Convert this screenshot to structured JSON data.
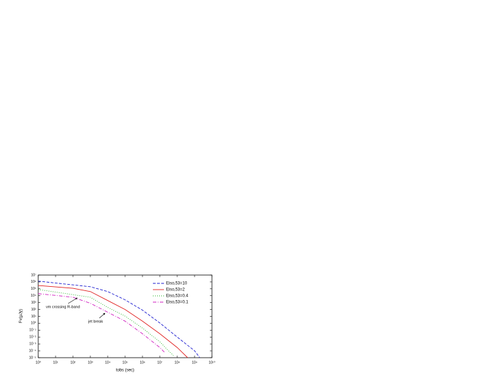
{
  "chart_data": {
    "type": "line",
    "x_label": "tobs (sec)",
    "y_label": "Fν(μJy)",
    "xscale": "log",
    "yscale": "log",
    "xlim": [
      1,
      10000000000
    ],
    "ylim": [
      1e-05,
      10000000
    ],
    "xticks": [
      {
        "value": 1,
        "label": "10⁰"
      },
      {
        "value": 10,
        "label": "10¹"
      },
      {
        "value": 100,
        "label": "10²"
      },
      {
        "value": 1000,
        "label": "10³"
      },
      {
        "value": 10000,
        "label": "10⁴"
      },
      {
        "value": 100000,
        "label": "10⁵"
      },
      {
        "value": 1000000,
        "label": "10⁶"
      },
      {
        "value": 10000000,
        "label": "10⁷"
      },
      {
        "value": 100000000,
        "label": "10⁸"
      },
      {
        "value": 1000000000,
        "label": "10⁹"
      },
      {
        "value": 10000000000,
        "label": "10¹⁰"
      }
    ],
    "yticks": [
      {
        "value": 1e-05,
        "label": "10⁻⁵"
      },
      {
        "value": 0.0001,
        "label": "10⁻⁴"
      },
      {
        "value": 0.001,
        "label": "10⁻³"
      },
      {
        "value": 0.01,
        "label": "10⁻²"
      },
      {
        "value": 0.1,
        "label": "10⁻¹"
      },
      {
        "value": 1,
        "label": "10⁰"
      },
      {
        "value": 10,
        "label": "10¹"
      },
      {
        "value": 100,
        "label": "10²"
      },
      {
        "value": 1000,
        "label": "10³"
      },
      {
        "value": 10000,
        "label": "10⁴"
      },
      {
        "value": 100000,
        "label": "10⁵"
      },
      {
        "value": 1000000,
        "label": "10⁶"
      },
      {
        "value": 10000000,
        "label": "10⁷"
      }
    ],
    "legend": "upper right",
    "series": [
      {
        "name": "Eiso,53=10",
        "color": "#1f1fd0",
        "dash": "4,2",
        "x": [
          1,
          1000,
          10000,
          100000,
          1000000,
          10000000,
          100000000,
          1000000000,
          2000000000
        ],
        "values": [
          1300000,
          200000,
          40000,
          2500,
          80,
          1.1,
          0.01,
          0.0001,
          1e-05
        ]
      },
      {
        "name": "Eiso,53=2",
        "color": "#e02020",
        "dash": "",
        "x": [
          1,
          100,
          1000,
          10000,
          100000,
          1000000,
          10000000,
          100000000,
          400000000
        ],
        "values": [
          300000,
          120000,
          40000,
          2000,
          100,
          2,
          0.03,
          0.0003,
          1e-05
        ]
      },
      {
        "name": "Eiso,53=0.4",
        "color": "#20b020",
        "dash": "1,2",
        "x": [
          1,
          1000,
          10000,
          100000,
          1000000,
          10000000,
          60000000
        ],
        "values": [
          80000,
          6000,
          200,
          11,
          0.2,
          0.002,
          2e-05
        ]
      },
      {
        "name": "Eiso,53=0.1",
        "color": "#d020c0",
        "dash": "5,2,1,2",
        "x": [
          1,
          100,
          1000,
          10000,
          100000,
          1000000,
          10000000,
          20000000
        ],
        "values": [
          20000,
          6000,
          800,
          40,
          2,
          0.03,
          0.0003,
          5e-05
        ]
      }
    ],
    "annotations": [
      {
        "text": "νm crossing R-band"
      },
      {
        "text": "jet break"
      }
    ]
  }
}
